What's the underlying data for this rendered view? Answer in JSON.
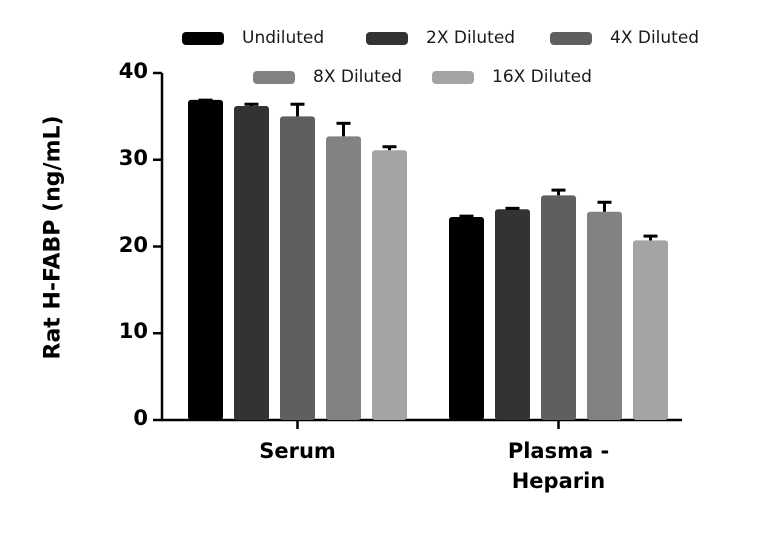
{
  "chart_data": {
    "type": "bar",
    "title": "",
    "xlabel": "",
    "ylabel": "Rat H-FABP (ng/mL)",
    "ylim": [
      0,
      40
    ],
    "yticks": [
      0,
      10,
      20,
      30,
      40
    ],
    "grid": false,
    "legend_position": "top",
    "categories": [
      "Serum",
      "Plasma - Heparin"
    ],
    "category_labels": [
      [
        "Serum"
      ],
      [
        "Plasma -",
        "Heparin"
      ]
    ],
    "series": [
      {
        "name": "Undiluted",
        "color": "#000000",
        "values": [
          36.9,
          23.4
        ],
        "errors": [
          0.0,
          0.1
        ]
      },
      {
        "name": "2X Diluted",
        "color": "#333333",
        "values": [
          36.2,
          24.3
        ],
        "errors": [
          0.2,
          0.1
        ]
      },
      {
        "name": "4X Diluted",
        "color": "#5f5f5f",
        "values": [
          35.0,
          25.9
        ],
        "errors": [
          1.4,
          0.6
        ]
      },
      {
        "name": "8X Diluted",
        "color": "#828282",
        "values": [
          32.7,
          24.0
        ],
        "errors": [
          1.5,
          1.1
        ]
      },
      {
        "name": "16X Diluted",
        "color": "#a4a4a6",
        "values": [
          31.1,
          20.7
        ],
        "errors": [
          0.4,
          0.5
        ]
      }
    ]
  }
}
